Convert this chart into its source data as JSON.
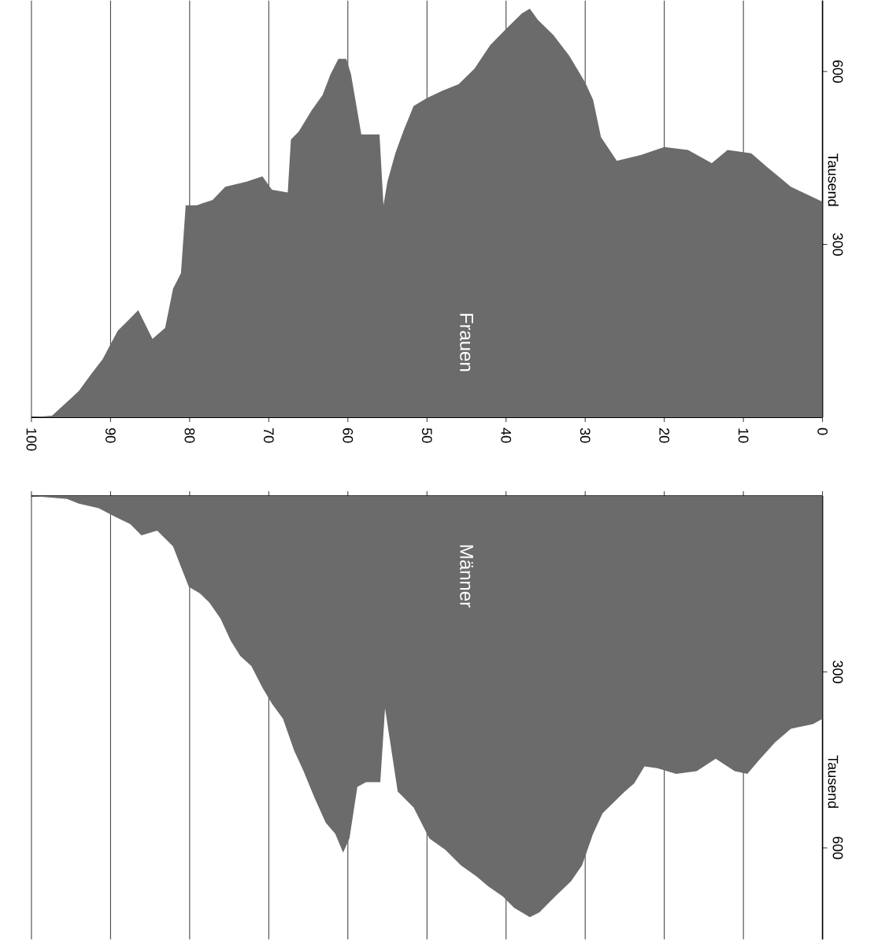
{
  "chart_data": [
    {
      "type": "area",
      "xlim": [
        100,
        0
      ],
      "xticks": [
        0,
        10,
        20,
        30,
        40,
        50,
        60,
        70,
        80,
        90,
        100
      ],
      "ylim": [
        0,
        723
      ],
      "yticks": [
        300,
        600
      ],
      "ylabel": "Tausend",
      "grid": "x",
      "legend": false,
      "series": [
        {
          "name": "Frauen",
          "color": "#6b6b6b",
          "x": [
            0,
            2,
            4,
            6,
            7,
            9,
            12,
            14,
            17,
            20,
            23,
            26,
            28,
            29,
            30,
            32,
            34,
            36,
            37,
            38,
            40,
            42,
            44,
            46,
            48,
            50,
            51.7,
            53,
            54,
            55,
            55.5,
            56,
            57.6,
            58.3,
            59.6,
            60.2,
            61.2,
            62.2,
            63.2,
            64.6,
            66.2,
            67.2,
            67.6,
            69.6,
            70.8,
            72.8,
            75.5,
            77.1,
            79.1,
            80.5,
            81.1,
            82.1,
            83.1,
            84.7,
            86.5,
            87.7,
            89.1,
            91,
            92.4,
            94,
            95,
            97.4,
            100
          ],
          "values": [
            374,
            387,
            400,
            423,
            434,
            458,
            464,
            441,
            464,
            469,
            455,
            445,
            486,
            551,
            581,
            627,
            663,
            690,
            709,
            701,
            674,
            646,
            605,
            578,
            567,
            554,
            540,
            496,
            458,
            409,
            368,
            491,
            491,
            491,
            595,
            622,
            622,
            595,
            559,
            532,
            496,
            482,
            390,
            395,
            418,
            409,
            400,
            377,
            368,
            368,
            250,
            223,
            155,
            136,
            186,
            169,
            150,
            101,
            76,
            46,
            33,
            3,
            0
          ]
        }
      ]
    },
    {
      "type": "area",
      "xlim": [
        100,
        0
      ],
      "xticks": [
        0,
        10,
        20,
        30,
        40,
        50,
        60,
        70,
        80,
        90,
        100
      ],
      "ylim": [
        756,
        0
      ],
      "yticks": [
        300,
        600
      ],
      "ylabel": "Tausend",
      "grid": "x",
      "legend": false,
      "tick_labels": "y",
      "series": [
        {
          "name": "Männer",
          "color": "#6b6b6b",
          "x": [
            0,
            1.2,
            4,
            6,
            8,
            9.5,
            11.1,
            13.5,
            15.9,
            18.5,
            20.9,
            22.5,
            23.8,
            25,
            27.8,
            29,
            30.4,
            31.8,
            33.8,
            35.8,
            37,
            39,
            40.4,
            42.3,
            43.7,
            45.7,
            47.7,
            49.7,
            51.7,
            53.7,
            54.7,
            55.3,
            55.9,
            57.7,
            58.8,
            59.8,
            60.6,
            61.6,
            62.8,
            64.2,
            65.6,
            66.8,
            68.2,
            69.6,
            70.8,
            72.2,
            73.6,
            74.8,
            76.1,
            77.5,
            78.7,
            80.1,
            81.1,
            82.1,
            84.1,
            86.1,
            87.5,
            89.5,
            91.5,
            94,
            95.5,
            100
          ],
          "values": [
            380,
            389,
            397,
            420,
            450,
            474,
            469,
            448,
            469,
            474,
            464,
            461,
            490,
            504,
            541,
            576,
            630,
            657,
            683,
            710,
            718,
            702,
            683,
            665,
            649,
            630,
            603,
            584,
            531,
            504,
            415,
            362,
            488,
            488,
            496,
            584,
            608,
            576,
            557,
            515,
            469,
            434,
            380,
            354,
            327,
            290,
            273,
            247,
            209,
            182,
            166,
            155,
            121,
            86,
            59,
            67,
            48,
            35,
            21,
            13,
            5,
            0
          ]
        }
      ]
    }
  ]
}
